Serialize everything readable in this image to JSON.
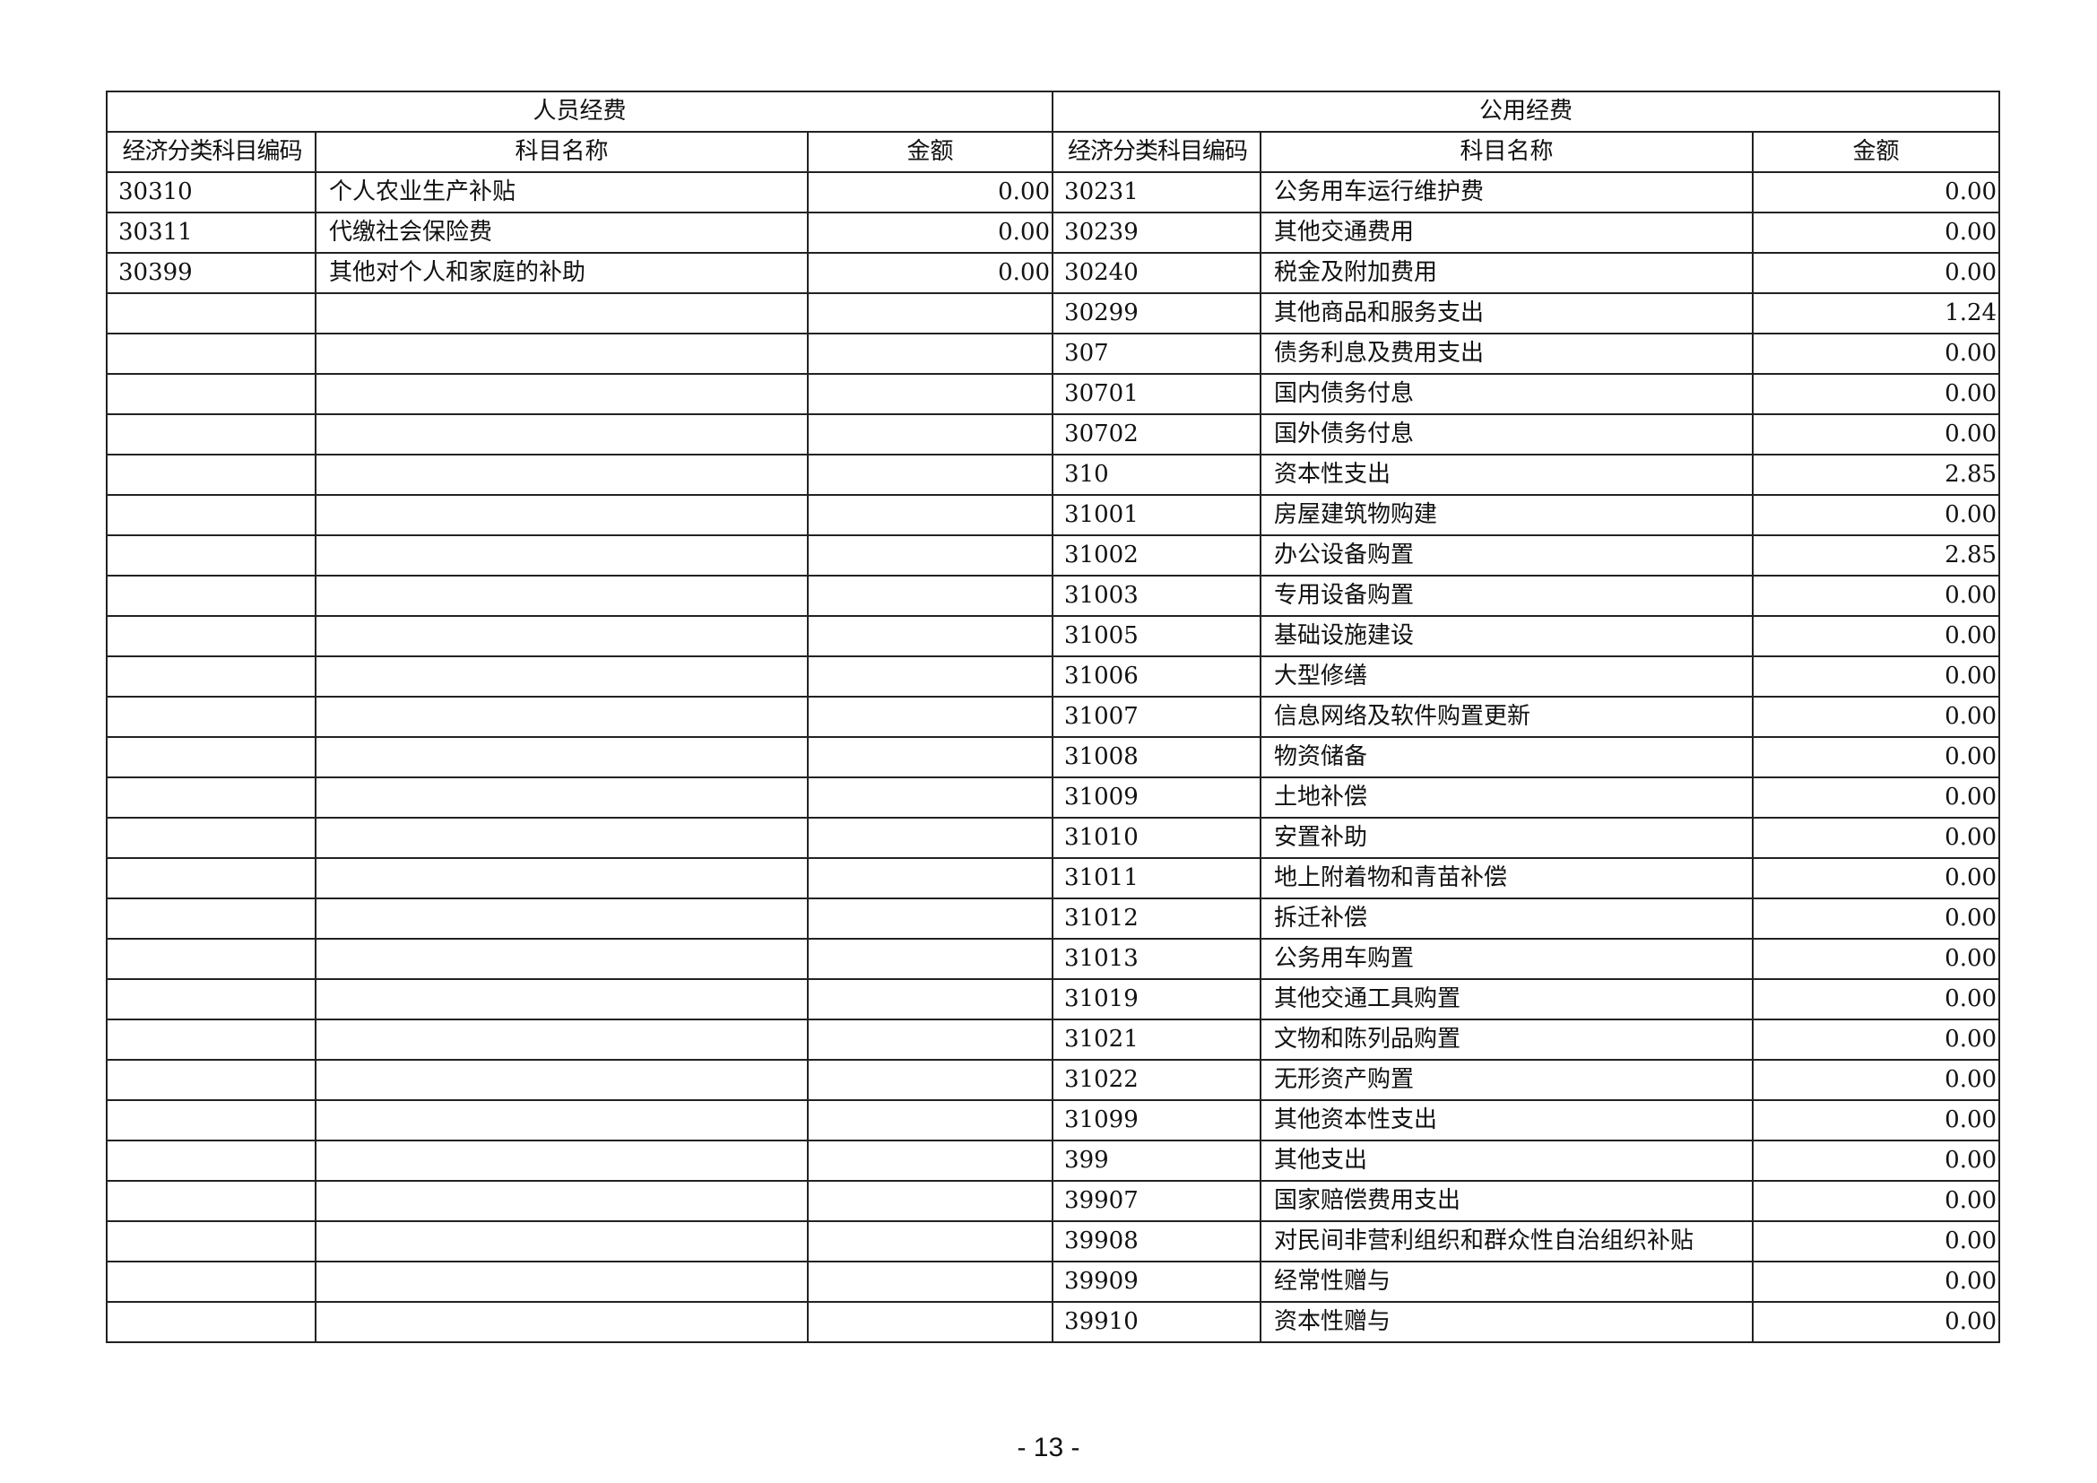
{
  "headers": {
    "personnel": "人员经费",
    "public": "公用经费",
    "code": "经济分类科目编码",
    "name": "科目名称",
    "amount": "金额"
  },
  "personnel_rows": [
    {
      "code": "30310",
      "name": "个人农业生产补贴",
      "amount": "0.00"
    },
    {
      "code": "30311",
      "name": "代缴社会保险费",
      "amount": "0.00"
    },
    {
      "code": "30399",
      "name": "其他对个人和家庭的补助",
      "amount": "0.00"
    }
  ],
  "public_rows": [
    {
      "code": "30231",
      "name": "公务用车运行维护费",
      "amount": "0.00"
    },
    {
      "code": "30239",
      "name": "其他交通费用",
      "amount": "0.00"
    },
    {
      "code": "30240",
      "name": "税金及附加费用",
      "amount": "0.00"
    },
    {
      "code": "30299",
      "name": "其他商品和服务支出",
      "amount": "1.24"
    },
    {
      "code": "307",
      "name": "债务利息及费用支出",
      "amount": "0.00"
    },
    {
      "code": "30701",
      "name": "国内债务付息",
      "amount": "0.00"
    },
    {
      "code": "30702",
      "name": "国外债务付息",
      "amount": "0.00"
    },
    {
      "code": "310",
      "name": "资本性支出",
      "amount": "2.85"
    },
    {
      "code": "31001",
      "name": "房屋建筑物购建",
      "amount": "0.00"
    },
    {
      "code": "31002",
      "name": "办公设备购置",
      "amount": "2.85"
    },
    {
      "code": "31003",
      "name": "专用设备购置",
      "amount": "0.00"
    },
    {
      "code": "31005",
      "name": "基础设施建设",
      "amount": "0.00"
    },
    {
      "code": "31006",
      "name": "大型修缮",
      "amount": "0.00"
    },
    {
      "code": "31007",
      "name": "信息网络及软件购置更新",
      "amount": "0.00"
    },
    {
      "code": "31008",
      "name": "物资储备",
      "amount": "0.00"
    },
    {
      "code": "31009",
      "name": "土地补偿",
      "amount": "0.00"
    },
    {
      "code": "31010",
      "name": "安置补助",
      "amount": "0.00"
    },
    {
      "code": "31011",
      "name": "地上附着物和青苗补偿",
      "amount": "0.00"
    },
    {
      "code": "31012",
      "name": "拆迁补偿",
      "amount": "0.00"
    },
    {
      "code": "31013",
      "name": "公务用车购置",
      "amount": "0.00"
    },
    {
      "code": "31019",
      "name": "其他交通工具购置",
      "amount": "0.00"
    },
    {
      "code": "31021",
      "name": "文物和陈列品购置",
      "amount": "0.00"
    },
    {
      "code": "31022",
      "name": "无形资产购置",
      "amount": "0.00"
    },
    {
      "code": "31099",
      "name": "其他资本性支出",
      "amount": "0.00"
    },
    {
      "code": "399",
      "name": "其他支出",
      "amount": "0.00"
    },
    {
      "code": "39907",
      "name": "国家赔偿费用支出",
      "amount": "0.00"
    },
    {
      "code": "39908",
      "name": "对民间非营利组织和群众性自治组织补贴",
      "amount": "0.00"
    },
    {
      "code": "39909",
      "name": "经常性赠与",
      "amount": "0.00"
    },
    {
      "code": "39910",
      "name": "资本性赠与",
      "amount": "0.00"
    }
  ],
  "page_number": "- 13 -"
}
